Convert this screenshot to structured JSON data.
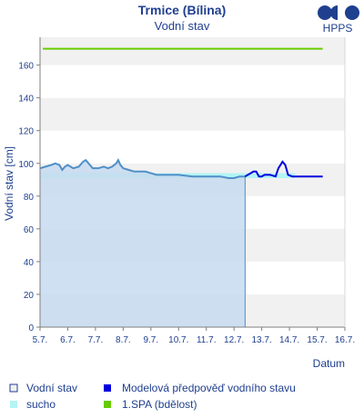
{
  "chart_data": {
    "type": "line",
    "title": "Trmice (Bílina)",
    "subtitle": "Vodní stav",
    "xlabel": "Datum",
    "ylabel": "Vodní stav [cm]",
    "brand": "HPPS",
    "x_ticks": [
      "5.7.",
      "6.7.",
      "7.7.",
      "8.7.",
      "9.7.",
      "10.7.",
      "11.7.",
      "12.7.",
      "13.7.",
      "14.7.",
      "15.7.",
      "16.7."
    ],
    "y_ticks": [
      0,
      20,
      40,
      60,
      80,
      100,
      120,
      140,
      160
    ],
    "xlim": [
      0,
      11
    ],
    "ylim": [
      0,
      177
    ],
    "grid": "horizontal bands",
    "colors": {
      "observed": "#4f8fc8",
      "observed_fill": "#c6dbef",
      "forecast": "#0000dd",
      "sucho": "#b3f5f5",
      "spa": "#66cc00",
      "band": "#f1f1f1",
      "text": "#1f3f8f"
    },
    "sucho": {
      "from": 0,
      "to": 9.2,
      "low": 91,
      "high": 94
    },
    "spa_level": 170,
    "series": [
      {
        "name": "Vodní stav",
        "points": [
          [
            0,
            97
          ],
          [
            0.2,
            98
          ],
          [
            0.4,
            99
          ],
          [
            0.55,
            100
          ],
          [
            0.7,
            99
          ],
          [
            0.8,
            96
          ],
          [
            0.9,
            98
          ],
          [
            1.0,
            99
          ],
          [
            1.2,
            97
          ],
          [
            1.4,
            98
          ],
          [
            1.55,
            101
          ],
          [
            1.65,
            102
          ],
          [
            1.75,
            100
          ],
          [
            1.9,
            97
          ],
          [
            2.1,
            97
          ],
          [
            2.3,
            98
          ],
          [
            2.45,
            97
          ],
          [
            2.6,
            98
          ],
          [
            2.75,
            100
          ],
          [
            2.82,
            102
          ],
          [
            2.9,
            99
          ],
          [
            3.0,
            97
          ],
          [
            3.2,
            96
          ],
          [
            3.4,
            95
          ],
          [
            3.6,
            95
          ],
          [
            3.8,
            95
          ],
          [
            4.0,
            94
          ],
          [
            4.2,
            93
          ],
          [
            4.6,
            93
          ],
          [
            5.0,
            93
          ],
          [
            5.5,
            92
          ],
          [
            6.0,
            92
          ],
          [
            6.5,
            92
          ],
          [
            6.8,
            91
          ],
          [
            7.0,
            91
          ],
          [
            7.2,
            92
          ],
          [
            7.4,
            92
          ]
        ]
      },
      {
        "name": "Modelová předpověď vodního stavu",
        "points": [
          [
            7.4,
            92
          ],
          [
            7.5,
            93
          ],
          [
            7.6,
            94
          ],
          [
            7.7,
            95
          ],
          [
            7.8,
            95
          ],
          [
            7.9,
            92
          ],
          [
            8.0,
            92
          ],
          [
            8.1,
            93
          ],
          [
            8.3,
            93
          ],
          [
            8.5,
            92
          ],
          [
            8.6,
            97
          ],
          [
            8.75,
            101
          ],
          [
            8.85,
            99
          ],
          [
            8.95,
            93
          ],
          [
            9.1,
            92
          ],
          [
            9.5,
            92
          ],
          [
            9.9,
            92
          ],
          [
            10.2,
            92
          ]
        ]
      }
    ],
    "legend": [
      {
        "label": "Vodní stav",
        "swatch": "outline"
      },
      {
        "label": "Modelová předpověď vodního stavu",
        "swatch": "forecast"
      },
      {
        "label": "sucho",
        "swatch": "sucho"
      },
      {
        "label": "1.SPA (bdělost)",
        "swatch": "spa"
      }
    ]
  }
}
